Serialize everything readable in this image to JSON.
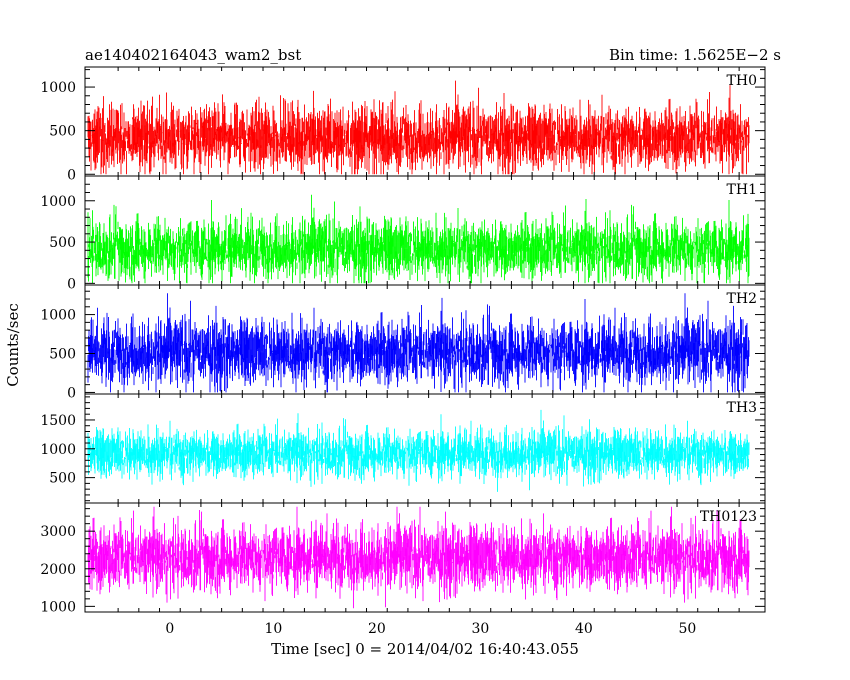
{
  "chart_data": {
    "type": "line",
    "title_left": "ae140402164043_wam2_bst",
    "title_right": "Bin time: 1.5625E−2 s",
    "xlabel": "Time [sec] 0 = 2014/04/02 16:40:43.055",
    "ylabel": "Counts/sec",
    "xlim": [
      -8.2,
      57.5
    ],
    "x_range_data": [
      -8,
      56
    ],
    "xticks": [
      0,
      10,
      20,
      30,
      40,
      50
    ],
    "grid": false,
    "panels": [
      {
        "name": "TH0",
        "color": "#ff0000",
        "ylim": [
          -20,
          1230
        ],
        "yticks": [
          0,
          500,
          1000
        ],
        "mean": 420,
        "spread": 260,
        "min": 0,
        "max": 1200
      },
      {
        "name": "TH1",
        "color": "#00ff00",
        "ylim": [
          -20,
          1300
        ],
        "yticks": [
          0,
          500,
          1000
        ],
        "mean": 420,
        "spread": 260,
        "min": 0,
        "max": 1280
      },
      {
        "name": "TH2",
        "color": "#0000ff",
        "ylim": [
          -20,
          1380
        ],
        "yticks": [
          0,
          500,
          1000
        ],
        "mean": 520,
        "spread": 300,
        "min": 0,
        "max": 1360
      },
      {
        "name": "TH3",
        "color": "#00ffff",
        "ylim": [
          60,
          1950
        ],
        "yticks": [
          500,
          1000,
          1500
        ],
        "mean": 920,
        "spread": 300,
        "min": 180,
        "max": 1850
      },
      {
        "name": "TH0123",
        "color": "#ff00ff",
        "ylim": [
          850,
          3750
        ],
        "yticks": [
          1000,
          2000,
          3000
        ],
        "mean": 2300,
        "spread": 620,
        "min": 950,
        "max": 3650
      }
    ]
  }
}
